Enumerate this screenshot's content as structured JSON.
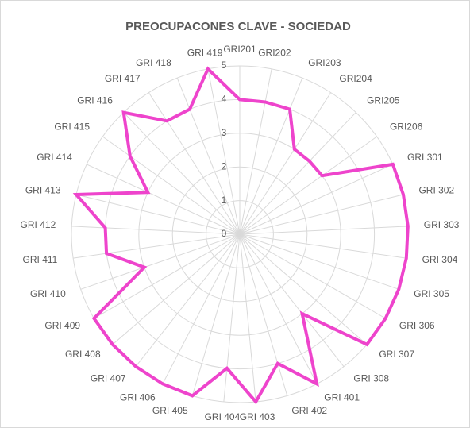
{
  "chart_data": {
    "type": "radar",
    "title": "PREOCUPACONES CLAVE - SOCIEDAD",
    "categories": [
      "GRI201",
      "GRI202",
      "GRI203",
      "GRI204",
      "GRI205",
      "GRI206",
      "GRI 301",
      "GRI 302",
      "GRI 303",
      "GRI 304",
      "GRI 305",
      "GRI 306",
      "GRI 307",
      "GRI 308",
      "GRI 401",
      "GRI 402",
      "GRI 403",
      "GRI 404",
      "GRI 405",
      "GRI 406",
      "GRI 407",
      "GRI 408",
      "GRI 409",
      "GRI 410",
      "GRI 411",
      "GRI 412",
      "GRI 413",
      "GRI 414",
      "GRI 415",
      "GRI 416",
      "GRI 417",
      "GRI 418",
      "GRI 419"
    ],
    "values": [
      4,
      4,
      4,
      3,
      3,
      3,
      5,
      5,
      5,
      5,
      5,
      5,
      5,
      3,
      5,
      4,
      5,
      4,
      5,
      5,
      5,
      5,
      5,
      3,
      4,
      4,
      5,
      3,
      4,
      5,
      4,
      4,
      5
    ],
    "color": "#ee44cc",
    "ylim": [
      0,
      5
    ],
    "yticks": [
      0,
      1,
      2,
      3,
      4,
      5
    ],
    "grid": true
  }
}
